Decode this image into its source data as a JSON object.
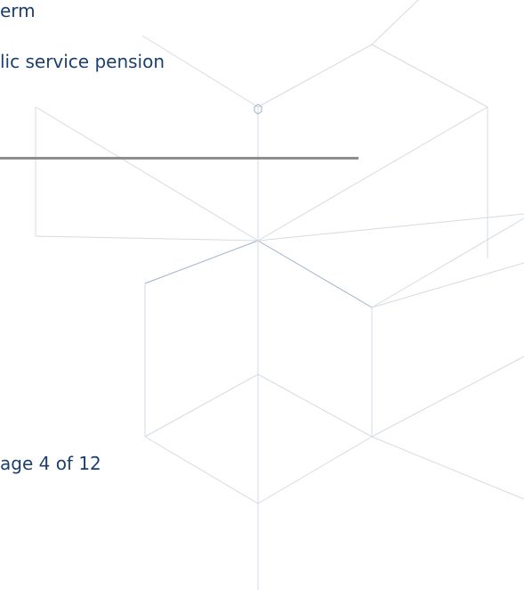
{
  "lines": [
    "erm",
    "lic service pension"
  ],
  "footer": {
    "page": "age 4 of 12"
  }
}
